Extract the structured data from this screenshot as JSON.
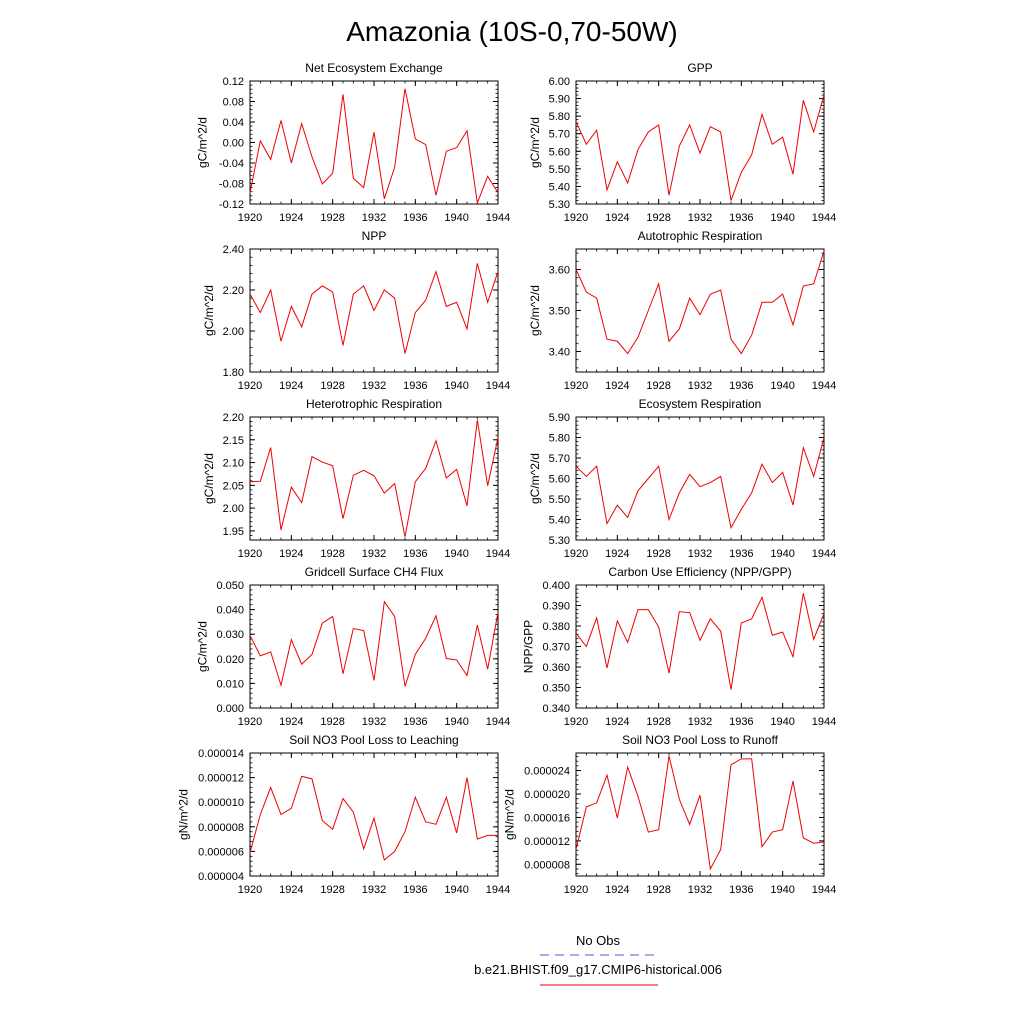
{
  "figure": {
    "title": "Amazonia (10S-0,70-50W)",
    "legend": {
      "obs_label": "No Obs",
      "obs_color": "#5555cc",
      "model_label": "b.e21.BHIST.f09_g17.CMIP6-historical.006",
      "model_color": "#ee0000"
    }
  },
  "chart_data": [
    {
      "type": "line",
      "title": "Net Ecosystem Exchange",
      "ylabel": "gC/m^2/d",
      "xlim": [
        1920,
        1944
      ],
      "ylim": [
        -0.12,
        0.12
      ],
      "xticks": [
        "1920",
        "1924",
        "1928",
        "1932",
        "1936",
        "1940",
        "1944"
      ],
      "yticks": [
        "-0.12",
        "-0.08",
        "-0.04",
        "0.00",
        "0.04",
        "0.08",
        "0.12"
      ],
      "series": [
        {
          "color": "#ee0000",
          "x": [
            1920,
            1921,
            1922,
            1923,
            1924,
            1925,
            1926,
            1927,
            1928,
            1929,
            1930,
            1931,
            1932,
            1933,
            1934,
            1935,
            1936,
            1937,
            1938,
            1939,
            1940,
            1941,
            1942,
            1943,
            1944
          ],
          "y": [
            -0.098,
            0.003,
            -0.033,
            0.043,
            -0.04,
            0.037,
            -0.028,
            -0.081,
            -0.06,
            0.094,
            -0.07,
            -0.088,
            0.02,
            -0.11,
            -0.048,
            0.105,
            0.007,
            -0.004,
            -0.103,
            -0.017,
            -0.01,
            0.023,
            -0.118,
            -0.066,
            -0.098
          ]
        }
      ]
    },
    {
      "type": "line",
      "title": "GPP",
      "ylabel": "gC/m^2/d",
      "xlim": [
        1920,
        1944
      ],
      "ylim": [
        5.3,
        6.0
      ],
      "xticks": [
        "1920",
        "1924",
        "1928",
        "1932",
        "1936",
        "1940",
        "1944"
      ],
      "yticks": [
        "5.30",
        "5.40",
        "5.50",
        "5.60",
        "5.70",
        "5.80",
        "5.90",
        "6.00"
      ],
      "series": [
        {
          "color": "#ee0000",
          "x": [
            1920,
            1921,
            1922,
            1923,
            1924,
            1925,
            1926,
            1927,
            1928,
            1929,
            1930,
            1931,
            1932,
            1933,
            1934,
            1935,
            1936,
            1937,
            1938,
            1939,
            1940,
            1941,
            1942,
            1943,
            1944
          ],
          "y": [
            5.77,
            5.64,
            5.72,
            5.38,
            5.54,
            5.42,
            5.61,
            5.71,
            5.75,
            5.35,
            5.63,
            5.75,
            5.59,
            5.74,
            5.71,
            5.32,
            5.48,
            5.58,
            5.81,
            5.64,
            5.68,
            5.47,
            5.89,
            5.71,
            5.92
          ]
        }
      ]
    },
    {
      "type": "line",
      "title": "NPP",
      "ylabel": "gC/m^2/d",
      "xlim": [
        1920,
        1944
      ],
      "ylim": [
        1.8,
        2.4
      ],
      "xticks": [
        "1920",
        "1924",
        "1928",
        "1932",
        "1936",
        "1940",
        "1944"
      ],
      "yticks": [
        "1.80",
        "2.00",
        "2.20",
        "2.40"
      ],
      "series": [
        {
          "color": "#ee0000",
          "x": [
            1920,
            1921,
            1922,
            1923,
            1924,
            1925,
            1926,
            1927,
            1928,
            1929,
            1930,
            1931,
            1932,
            1933,
            1934,
            1935,
            1936,
            1937,
            1938,
            1939,
            1940,
            1941,
            1942,
            1943,
            1944
          ],
          "y": [
            2.18,
            2.09,
            2.2,
            1.95,
            2.12,
            2.02,
            2.18,
            2.22,
            2.19,
            1.93,
            2.18,
            2.22,
            2.1,
            2.2,
            2.16,
            1.89,
            2.09,
            2.15,
            2.29,
            2.12,
            2.14,
            2.01,
            2.33,
            2.14,
            2.29
          ]
        }
      ]
    },
    {
      "type": "line",
      "title": "Autotrophic Respiration",
      "ylabel": "gC/m^2/d",
      "xlim": [
        1920,
        1944
      ],
      "ylim": [
        3.35,
        3.65
      ],
      "xticks": [
        "1920",
        "1924",
        "1928",
        "1932",
        "1936",
        "1940",
        "1944"
      ],
      "yticks": [
        "3.40",
        "3.50",
        "3.60"
      ],
      "series": [
        {
          "color": "#ee0000",
          "x": [
            1920,
            1921,
            1922,
            1923,
            1924,
            1925,
            1926,
            1927,
            1928,
            1929,
            1930,
            1931,
            1932,
            1933,
            1934,
            1935,
            1936,
            1937,
            1938,
            1939,
            1940,
            1941,
            1942,
            1943,
            1944
          ],
          "y": [
            3.6,
            3.545,
            3.53,
            3.43,
            3.425,
            3.395,
            3.435,
            3.5,
            3.565,
            3.425,
            3.455,
            3.53,
            3.49,
            3.54,
            3.55,
            3.43,
            3.395,
            3.44,
            3.52,
            3.52,
            3.54,
            3.465,
            3.56,
            3.565,
            3.645
          ]
        }
      ]
    },
    {
      "type": "line",
      "title": "Heterotrophic Respiration",
      "ylabel": "gC/m^2/d",
      "xlim": [
        1920,
        1944
      ],
      "ylim": [
        1.93,
        2.2
      ],
      "xticks": [
        "1920",
        "1924",
        "1928",
        "1932",
        "1936",
        "1940",
        "1944"
      ],
      "yticks": [
        "1.95",
        "2.00",
        "2.05",
        "2.10",
        "2.15",
        "2.20"
      ],
      "series": [
        {
          "color": "#ee0000",
          "x": [
            1920,
            1921,
            1922,
            1923,
            1924,
            1925,
            1926,
            1927,
            1928,
            1929,
            1930,
            1931,
            1932,
            1933,
            1934,
            1935,
            1936,
            1937,
            1938,
            1939,
            1940,
            1941,
            1942,
            1943,
            1944
          ],
          "y": [
            2.058,
            2.059,
            2.133,
            1.952,
            2.046,
            2.012,
            2.113,
            2.101,
            2.093,
            1.977,
            2.072,
            2.083,
            2.071,
            2.033,
            2.054,
            1.937,
            2.058,
            2.087,
            2.148,
            2.066,
            2.085,
            2.005,
            2.193,
            2.049,
            2.155
          ]
        }
      ]
    },
    {
      "type": "line",
      "title": "Ecosystem Respiration",
      "ylabel": "gC/m^2/d",
      "xlim": [
        1920,
        1944
      ],
      "ylim": [
        5.3,
        5.9
      ],
      "xticks": [
        "1920",
        "1924",
        "1928",
        "1932",
        "1936",
        "1940",
        "1944"
      ],
      "yticks": [
        "5.30",
        "5.40",
        "5.50",
        "5.60",
        "5.70",
        "5.80",
        "5.90"
      ],
      "series": [
        {
          "color": "#ee0000",
          "x": [
            1920,
            1921,
            1922,
            1923,
            1924,
            1925,
            1926,
            1927,
            1928,
            1929,
            1930,
            1931,
            1932,
            1933,
            1934,
            1935,
            1936,
            1937,
            1938,
            1939,
            1940,
            1941,
            1942,
            1943,
            1944
          ],
          "y": [
            5.66,
            5.61,
            5.66,
            5.38,
            5.47,
            5.41,
            5.54,
            5.6,
            5.66,
            5.4,
            5.53,
            5.62,
            5.56,
            5.58,
            5.61,
            5.36,
            5.45,
            5.53,
            5.67,
            5.58,
            5.63,
            5.47,
            5.75,
            5.61,
            5.8
          ]
        }
      ]
    },
    {
      "type": "line",
      "title": "Gridcell Surface CH4 Flux",
      "ylabel": "gC/m^2/d",
      "xlim": [
        1920,
        1944
      ],
      "ylim": [
        0.0,
        0.05
      ],
      "xticks": [
        "1920",
        "1924",
        "1928",
        "1932",
        "1936",
        "1940",
        "1944"
      ],
      "yticks": [
        "0.000",
        "0.010",
        "0.020",
        "0.030",
        "0.040",
        "0.050"
      ],
      "series": [
        {
          "color": "#ee0000",
          "x": [
            1920,
            1921,
            1922,
            1923,
            1924,
            1925,
            1926,
            1927,
            1928,
            1929,
            1930,
            1931,
            1932,
            1933,
            1934,
            1935,
            1936,
            1937,
            1938,
            1939,
            1940,
            1941,
            1942,
            1943,
            1944
          ],
          "y": [
            0.0295,
            0.0212,
            0.0228,
            0.0092,
            0.0278,
            0.0178,
            0.0218,
            0.0345,
            0.0372,
            0.0139,
            0.0323,
            0.0315,
            0.0112,
            0.0432,
            0.0372,
            0.0088,
            0.0218,
            0.0283,
            0.0375,
            0.0201,
            0.0195,
            0.0132,
            0.0337,
            0.0158,
            0.039
          ]
        }
      ]
    },
    {
      "type": "line",
      "title": "Carbon Use Efficiency (NPP/GPP)",
      "ylabel": "NPP/GPP",
      "xlim": [
        1920,
        1944
      ],
      "ylim": [
        0.34,
        0.4
      ],
      "xticks": [
        "1920",
        "1924",
        "1928",
        "1932",
        "1936",
        "1940",
        "1944"
      ],
      "yticks": [
        "0.340",
        "0.350",
        "0.360",
        "0.370",
        "0.380",
        "0.390",
        "0.400"
      ],
      "series": [
        {
          "color": "#ee0000",
          "x": [
            1920,
            1921,
            1922,
            1923,
            1924,
            1925,
            1926,
            1927,
            1928,
            1929,
            1930,
            1931,
            1932,
            1933,
            1934,
            1935,
            1936,
            1937,
            1938,
            1939,
            1940,
            1941,
            1942,
            1943,
            1944
          ],
          "y": [
            0.3765,
            0.37,
            0.384,
            0.3595,
            0.3825,
            0.372,
            0.388,
            0.388,
            0.3795,
            0.357,
            0.387,
            0.3865,
            0.373,
            0.3835,
            0.3775,
            0.349,
            0.3815,
            0.3835,
            0.394,
            0.3755,
            0.377,
            0.365,
            0.396,
            0.3735,
            0.386
          ]
        }
      ]
    },
    {
      "type": "line",
      "title": "Soil NO3 Pool Loss to Leaching",
      "ylabel": "gN/m^2/d",
      "xlim": [
        1920,
        1944
      ],
      "ylim": [
        4e-06,
        1.4e-05
      ],
      "xticks": [
        "1920",
        "1924",
        "1928",
        "1932",
        "1936",
        "1940",
        "1944"
      ],
      "yticks": [
        "0.000004",
        "0.000006",
        "0.000008",
        "0.000010",
        "0.000012",
        "0.000014"
      ],
      "series": [
        {
          "color": "#ee0000",
          "x": [
            1920,
            1921,
            1922,
            1923,
            1924,
            1925,
            1926,
            1927,
            1928,
            1929,
            1930,
            1931,
            1932,
            1933,
            1934,
            1935,
            1936,
            1937,
            1938,
            1939,
            1940,
            1941,
            1942,
            1943,
            1944
          ],
          "y": [
            5.9e-06,
            9e-06,
            1.12e-05,
            9e-06,
            9.5e-06,
            1.21e-05,
            1.19e-05,
            8.5e-06,
            7.8e-06,
            1.03e-05,
            9.2e-06,
            6.2e-06,
            8.7e-06,
            5.3e-06,
            6e-06,
            7.6e-06,
            1.04e-05,
            8.4e-06,
            8.2e-06,
            1.04e-05,
            7.5e-06,
            1.2e-05,
            7e-06,
            7.3e-06,
            7.3e-06
          ]
        }
      ]
    },
    {
      "type": "line",
      "title": "Soil NO3 Pool Loss to Runoff",
      "ylabel": "gN/m^2/d",
      "xlim": [
        1920,
        1944
      ],
      "ylim": [
        6e-06,
        2.7e-05
      ],
      "xticks": [
        "1920",
        "1924",
        "1928",
        "1932",
        "1936",
        "1940",
        "1944"
      ],
      "yticks": [
        "0.000008",
        "0.000012",
        "0.000016",
        "0.000020",
        "0.000024"
      ],
      "series": [
        {
          "color": "#ee0000",
          "x": [
            1920,
            1921,
            1922,
            1923,
            1924,
            1925,
            1926,
            1927,
            1928,
            1929,
            1930,
            1931,
            1932,
            1933,
            1934,
            1935,
            1936,
            1937,
            1938,
            1939,
            1940,
            1941,
            1942,
            1943,
            1944
          ],
          "y": [
            1.05e-05,
            1.78e-05,
            1.85e-05,
            2.32e-05,
            1.59e-05,
            2.46e-05,
            1.96e-05,
            1.35e-05,
            1.39e-05,
            2.65e-05,
            1.91e-05,
            1.48e-05,
            1.98e-05,
            7.2e-06,
            1.05e-05,
            2.5e-05,
            2.6e-05,
            2.6e-05,
            1.1e-05,
            1.35e-05,
            1.39e-05,
            2.22e-05,
            1.25e-05,
            1.16e-05,
            1.18e-05
          ]
        }
      ]
    }
  ]
}
